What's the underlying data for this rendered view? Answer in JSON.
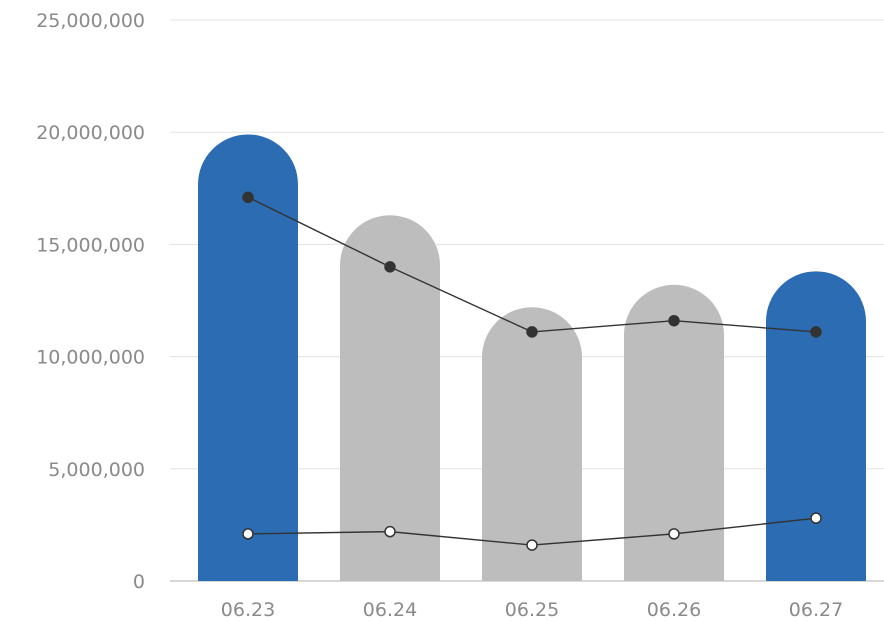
{
  "chart_data": {
    "type": "bar",
    "categories": [
      "06.23",
      "06.24",
      "06.25",
      "06.26",
      "06.27"
    ],
    "ylim": [
      0,
      25000000
    ],
    "y_ticks": [
      0,
      5000000,
      10000000,
      15000000,
      20000000,
      25000000
    ],
    "y_tick_labels": [
      "0",
      "5,000,000",
      "10,000,000",
      "15,000,000",
      "20,000,000",
      "25,000,000"
    ],
    "grid": true,
    "legend": "none",
    "bars": {
      "values": [
        19900000,
        16300000,
        12200000,
        13200000,
        13800000
      ],
      "colors": [
        "#2b6cb3",
        "#bdbdbd",
        "#bdbdbd",
        "#bdbdbd",
        "#2b6cb3"
      ]
    },
    "lines": [
      {
        "style": "filled-marker",
        "values": [
          17100000,
          14000000,
          11100000,
          11600000,
          11100000
        ],
        "line_color": "#333333",
        "marker_fill": "#333333"
      },
      {
        "style": "hollow-marker",
        "values": [
          2100000,
          2200000,
          1600000,
          2100000,
          2800000
        ],
        "line_color": "#333333",
        "marker_fill": "#ffffff"
      }
    ],
    "colors": {
      "grid": "#e3e3e3",
      "axis": "#cccccc"
    }
  }
}
